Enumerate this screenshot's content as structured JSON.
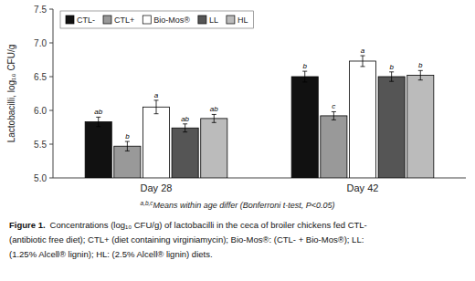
{
  "chart_data": {
    "type": "bar",
    "categories": [
      "Day 28",
      "Day 42"
    ],
    "series": [
      {
        "name": "CTL-",
        "color": "#111111",
        "values": [
          5.83,
          6.5
        ],
        "errors": [
          0.07,
          0.08
        ],
        "annotations": [
          "ab",
          "b"
        ]
      },
      {
        "name": "CTL+",
        "color": "#999999",
        "values": [
          5.47,
          5.92
        ],
        "errors": [
          0.07,
          0.06
        ],
        "annotations": [
          "b",
          "c"
        ]
      },
      {
        "name": "Bio-Mos®",
        "color": "#ffffff",
        "values": [
          6.05,
          6.73
        ],
        "errors": [
          0.1,
          0.08
        ],
        "annotations": [
          "a",
          "a"
        ]
      },
      {
        "name": "LL",
        "color": "#555555",
        "values": [
          5.74,
          6.5
        ],
        "errors": [
          0.06,
          0.07
        ],
        "annotations": [
          "ab",
          "b"
        ]
      },
      {
        "name": "HL",
        "color": "#bbbbbb",
        "values": [
          5.88,
          6.52
        ],
        "errors": [
          0.06,
          0.07
        ],
        "annotations": [
          "ab",
          "b"
        ]
      }
    ],
    "ylabel": "Lactobacilli, log₁₀ CFU/g",
    "ylim": [
      5.0,
      7.5
    ],
    "yticks": [
      {
        "value": 5.0,
        "label": "5.0"
      },
      5.5,
      {
        "value": 6.0,
        "label": "6.0"
      },
      6.5,
      {
        "value": 7.0,
        "label": "7.0"
      },
      7.5
    ],
    "grid": false,
    "legend": "upper left",
    "footnote_mark": "a,b,c",
    "footnote": "Means within age differ (Bonferroni t-test, P<0.05)",
    "caption_label": "Figure 1.",
    "caption": [
      "Concentrations (log₁₀ CFU/g) of lactobacilli in the ceca of broiler chickens fed CTL-",
      "(antibiotic free diet); CTL+ (diet containing virginiamycin); Bio-Mos®: (CTL- + Bio-Mos®); LL:",
      "(1.25% Alcell® lignin); HL: (2.5% Alcell® lignin) diets."
    ]
  }
}
